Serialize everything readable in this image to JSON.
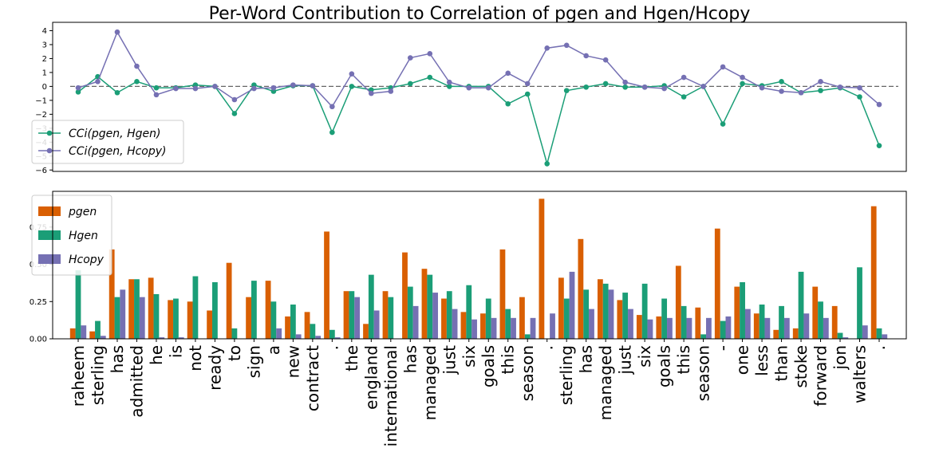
{
  "chart_data": [
    {
      "type": "line",
      "title": "Per-Word Contribution to Correlation of pgen and Hgen/Hcopy",
      "ylim": [
        -6.1,
        4.6
      ],
      "yticks": [
        {
          "value": -6,
          "label": "−6"
        },
        {
          "value": -5,
          "label": "−5"
        },
        {
          "value": -4,
          "label": "−4"
        },
        {
          "value": -3,
          "label": "−3"
        },
        {
          "value": -2,
          "label": "−2"
        },
        {
          "value": -1,
          "label": "−1"
        },
        0,
        1,
        2,
        3,
        4
      ],
      "hline": 0,
      "legend": "lower left",
      "series": [
        {
          "name": "CCi(pgen, Hgen)",
          "color": "#1b9e77",
          "values": [
            -0.4,
            0.7,
            -0.45,
            0.35,
            -0.1,
            -0.1,
            0.1,
            0,
            -1.95,
            0.1,
            -0.35,
            0.05,
            0.05,
            -3.3,
            0,
            -0.25,
            -0.1,
            0.2,
            0.65,
            0,
            0,
            0,
            -1.25,
            -0.55,
            -5.55,
            -0.3,
            -0.05,
            0.2,
            -0.05,
            -0.05,
            0.05,
            -0.75,
            0,
            -2.7,
            0.2,
            0.05,
            0.35,
            -0.45,
            -0.3,
            -0.1,
            -0.75,
            -4.25
          ]
        },
        {
          "name": "CCi(pgen, Hcopy)",
          "color": "#7570b3",
          "values": [
            -0.1,
            0.35,
            3.9,
            1.45,
            -0.6,
            -0.15,
            -0.15,
            0,
            -0.95,
            -0.15,
            -0.1,
            0.1,
            0.05,
            -1.45,
            0.9,
            -0.5,
            -0.35,
            2.05,
            2.35,
            0.3,
            -0.1,
            -0.1,
            0.95,
            0.2,
            2.75,
            2.95,
            2.2,
            1.9,
            0.3,
            -0.05,
            -0.15,
            0.65,
            0,
            1.4,
            0.65,
            -0.1,
            -0.35,
            -0.45,
            0.35,
            -0.05,
            -0.1,
            -1.3
          ]
        }
      ]
    },
    {
      "type": "bar",
      "categories": [
        "raheem",
        "sterling",
        "has",
        "admitted",
        "he",
        "is",
        "not",
        "ready",
        "to",
        "sign",
        "a",
        "new",
        "contract",
        ".",
        "the",
        "england",
        "international",
        "has",
        "managed",
        "just",
        "six",
        "goals",
        "this",
        "season",
        ".",
        "sterling",
        "has",
        "managed",
        "just",
        "six",
        "goals",
        "this",
        "season",
        "-",
        "one",
        "less",
        "than",
        "stoke",
        "forward",
        "jon",
        "walters",
        "."
      ],
      "ylim": [
        0,
        0.99
      ],
      "yticks": [
        {
          "value": 0,
          "label": "0.00"
        },
        {
          "value": 0.25,
          "label": "0.25"
        },
        {
          "value": 0.5,
          "label": "0.50"
        },
        {
          "value": 0.75,
          "label": "0.75"
        }
      ],
      "legend": "upper left",
      "series": [
        {
          "name": "pgen",
          "color": "#d95f02",
          "values": [
            0.07,
            0.05,
            0.6,
            0.4,
            0.41,
            0.26,
            0.25,
            0.19,
            0.51,
            0.28,
            0.39,
            0.15,
            0.18,
            0.72,
            0.32,
            0.1,
            0.32,
            0.58,
            0.47,
            0.27,
            0.18,
            0.17,
            0.6,
            0.28,
            0.94,
            0.41,
            0.67,
            0.4,
            0.26,
            0.16,
            0.15,
            0.49,
            0.21,
            0.74,
            0.35,
            0.17,
            0.06,
            0.07,
            0.35,
            0.22,
            0,
            0.89
          ]
        },
        {
          "name": "Hgen",
          "color": "#1b9e77",
          "values": [
            0.46,
            0.12,
            0.28,
            0.4,
            0.3,
            0.27,
            0.42,
            0.38,
            0.07,
            0.39,
            0.25,
            0.23,
            0.1,
            0.06,
            0.32,
            0.43,
            0.28,
            0.35,
            0.43,
            0.32,
            0.36,
            0.27,
            0.2,
            0.03,
            0,
            0.27,
            0.33,
            0.37,
            0.31,
            0.37,
            0.27,
            0.22,
            0.03,
            0.12,
            0.38,
            0.23,
            0.22,
            0.45,
            0.25,
            0.04,
            0.48,
            0.07
          ]
        },
        {
          "name": "Hcopy",
          "color": "#7570b3",
          "values": [
            0.09,
            0.02,
            0.33,
            0.28,
            0.01,
            0.01,
            0,
            0,
            0,
            0,
            0.07,
            0.03,
            0.02,
            0.01,
            0.28,
            0.19,
            0,
            0.22,
            0.31,
            0.2,
            0.13,
            0.14,
            0.14,
            0.14,
            0.17,
            0.45,
            0.2,
            0.33,
            0.2,
            0.13,
            0.14,
            0.14,
            0.14,
            0.15,
            0.2,
            0.14,
            0.14,
            0.17,
            0.14,
            0.01,
            0.09,
            0.03
          ]
        }
      ]
    }
  ]
}
